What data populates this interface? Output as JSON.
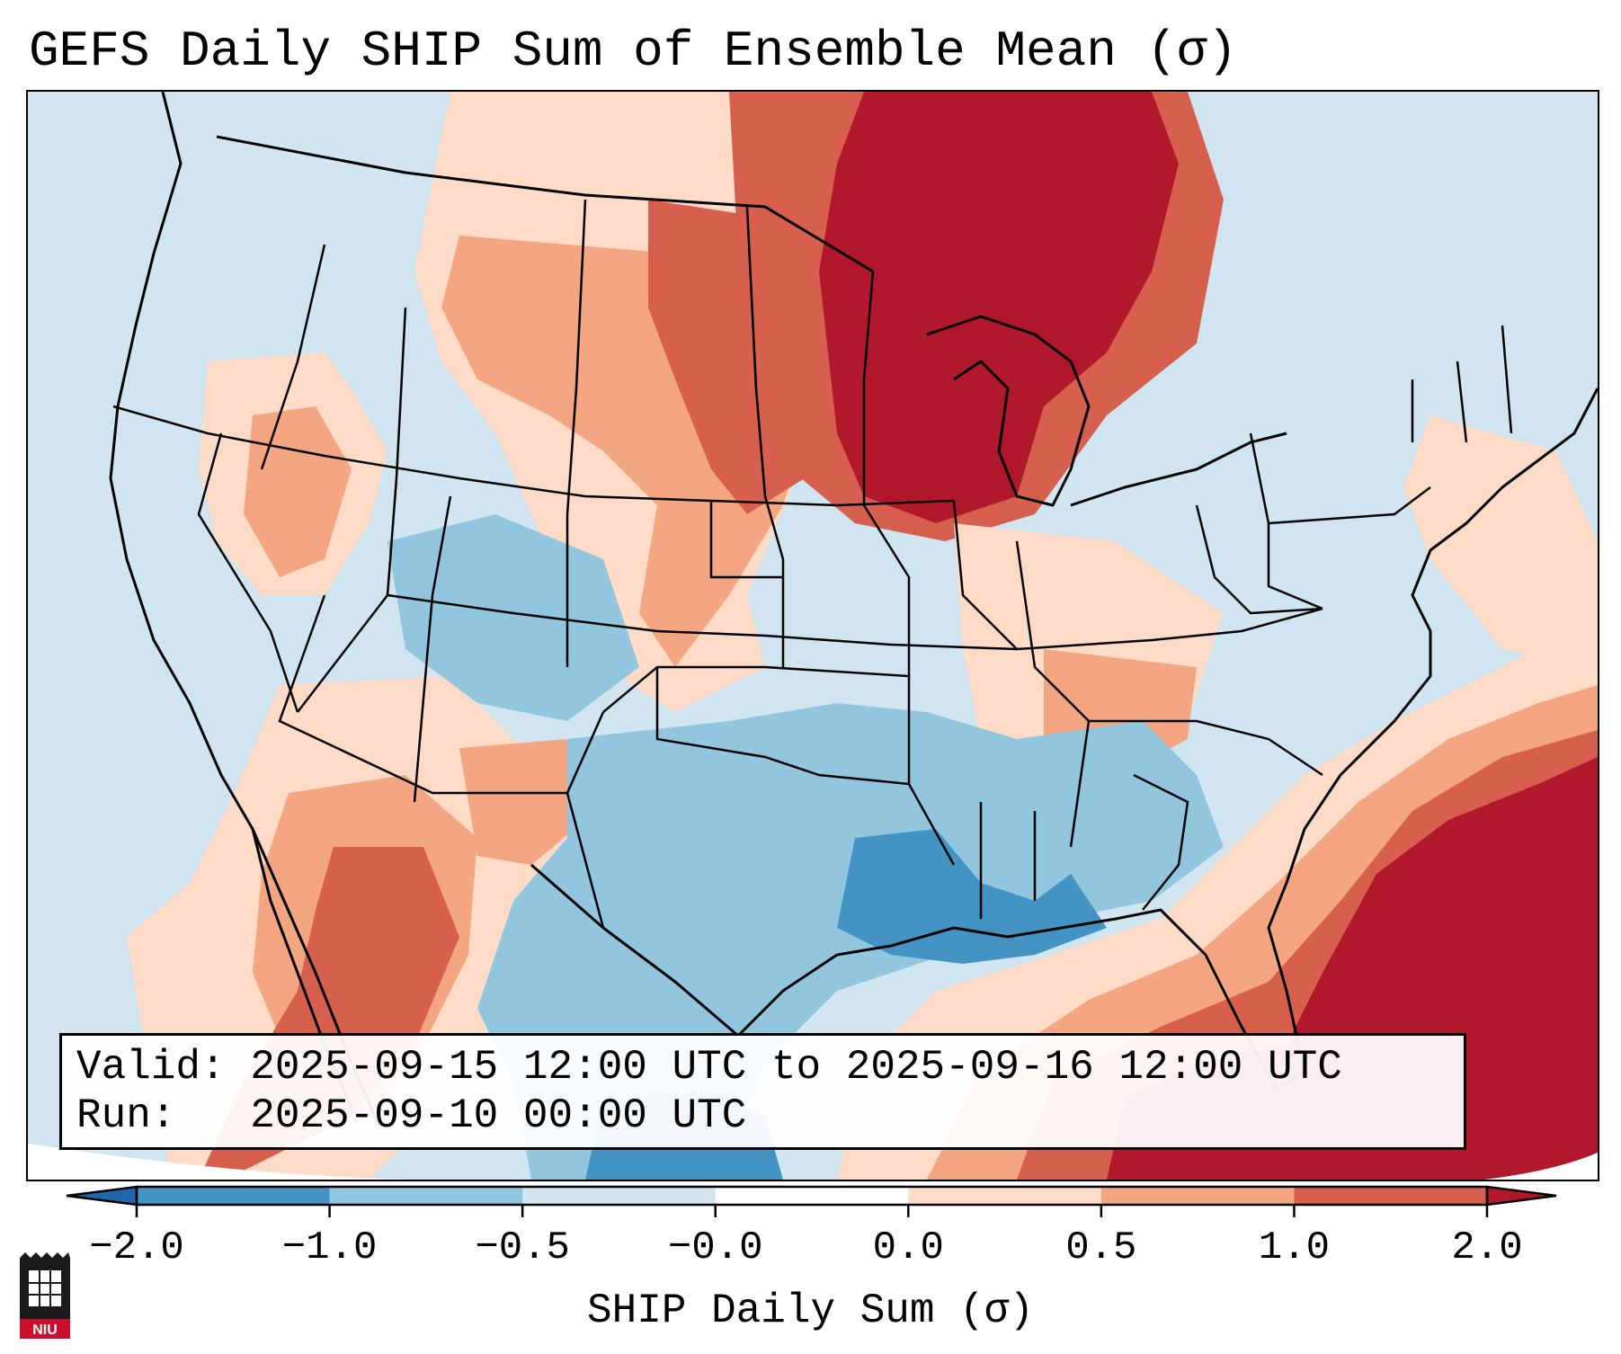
{
  "title": "GEFS Daily SHIP Sum of Ensemble Mean (σ)",
  "map": {
    "region": "Contiguous United States",
    "variable": "SHIP Daily Sum anomaly (σ)"
  },
  "info": {
    "valid_line": "Valid: 2025-09-15 12:00 UTC to 2025-09-16 12:00 UTC",
    "run_line": "Run:   2025-09-10 00:00 UTC"
  },
  "colorbar": {
    "label": "SHIP Daily Sum (σ)",
    "ticks": [
      "−2.0",
      "−1.0",
      "−0.5",
      "−0.0",
      "0.0",
      "0.5",
      "1.0",
      "2.0"
    ],
    "colors": [
      "#2166ac",
      "#4393c3",
      "#92c5de",
      "#d1e5f0",
      "#ffffff",
      "#fddbc7",
      "#f4a582",
      "#d6604d",
      "#b2182b"
    ]
  },
  "logo": {
    "text": "NIU"
  }
}
